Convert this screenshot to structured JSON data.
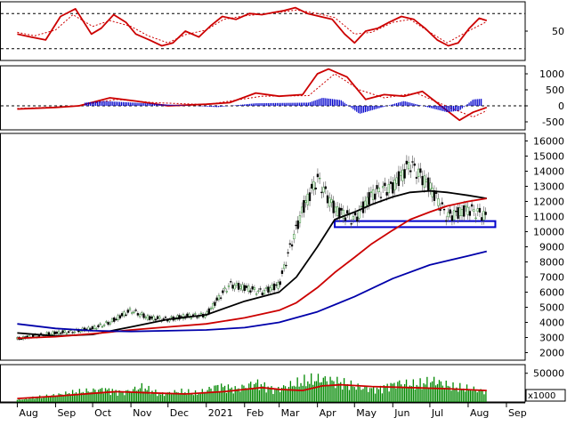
{
  "chart_data": [
    {
      "panel": "rsi",
      "type": "line",
      "y_ticks": [
        "50"
      ],
      "y_range": [
        0,
        100
      ],
      "reference_levels": [
        80,
        20
      ],
      "series": [
        {
          "color": "#cc0000",
          "style": "solid",
          "x": [
            "2020-08-01",
            "2020-08-12",
            "2020-08-24",
            "2020-09-05",
            "2020-09-17",
            "2020-09-30",
            "2020-10-08",
            "2020-10-18",
            "2020-10-28",
            "2020-11-05",
            "2020-11-16",
            "2020-11-26",
            "2020-12-05",
            "2020-12-15",
            "2020-12-26",
            "2021-01-05",
            "2021-01-14",
            "2021-01-25",
            "2021-02-05",
            "2021-02-15",
            "2021-02-25",
            "2021-03-05",
            "2021-03-14",
            "2021-03-24",
            "2021-04-03",
            "2021-04-13",
            "2021-04-23",
            "2021-05-01",
            "2021-05-10",
            "2021-05-20",
            "2021-05-29",
            "2021-06-08",
            "2021-06-18",
            "2021-06-27",
            "2021-07-07",
            "2021-07-16",
            "2021-07-24",
            "2021-08-02",
            "2021-08-10",
            "2021-08-16"
          ],
          "values": [
            45,
            40,
            35,
            75,
            88,
            45,
            55,
            78,
            65,
            45,
            35,
            25,
            30,
            50,
            40,
            60,
            75,
            70,
            80,
            78,
            82,
            85,
            90,
            80,
            75,
            70,
            45,
            30,
            50,
            55,
            65,
            75,
            70,
            55,
            35,
            25,
            30,
            55,
            72,
            68
          ]
        },
        {
          "color": "#cc0000",
          "style": "dotted",
          "x": [
            "2020-08-01",
            "2020-08-15",
            "2020-09-01",
            "2020-09-15",
            "2020-10-01",
            "2020-10-15",
            "2020-11-01",
            "2020-11-15",
            "2020-12-01",
            "2020-12-15",
            "2021-01-01",
            "2021-01-15",
            "2021-02-01",
            "2021-02-15",
            "2021-03-01",
            "2021-03-15",
            "2021-04-01",
            "2021-04-15",
            "2021-05-01",
            "2021-05-15",
            "2021-06-01",
            "2021-06-15",
            "2021-07-01",
            "2021-07-15",
            "2021-08-01",
            "2021-08-16"
          ],
          "values": [
            48,
            42,
            52,
            78,
            58,
            68,
            58,
            42,
            30,
            44,
            52,
            70,
            76,
            79,
            82,
            86,
            80,
            73,
            45,
            48,
            65,
            70,
            48,
            30,
            50,
            66
          ]
        }
      ]
    },
    {
      "panel": "macd",
      "type": "line",
      "y_ticks": [
        "1000",
        "500",
        "0",
        "-500"
      ],
      "y_range": [
        -750,
        1250
      ],
      "reference_levels": [
        0
      ],
      "series": [
        {
          "color": "#cc0000",
          "style": "solid",
          "x": [
            "2020-08-01",
            "2020-09-01",
            "2020-09-20",
            "2020-10-15",
            "2020-11-05",
            "2020-12-01",
            "2021-01-01",
            "2021-01-20",
            "2021-02-10",
            "2021-03-01",
            "2021-03-20",
            "2021-04-01",
            "2021-04-10",
            "2021-04-25",
            "2021-05-10",
            "2021-05-25",
            "2021-06-10",
            "2021-06-25",
            "2021-07-10",
            "2021-07-25",
            "2021-08-05",
            "2021-08-16"
          ],
          "values": [
            -100,
            -50,
            0,
            250,
            150,
            0,
            50,
            100,
            400,
            300,
            350,
            1000,
            1150,
            900,
            200,
            350,
            300,
            450,
            0,
            -450,
            -200,
            -50
          ]
        },
        {
          "color": "#cc0000",
          "style": "dotted",
          "x": [
            "2020-08-01",
            "2020-09-15",
            "2020-10-20",
            "2020-11-20",
            "2021-01-01",
            "2021-02-15",
            "2021-03-25",
            "2021-04-15",
            "2021-05-05",
            "2021-05-25",
            "2021-06-20",
            "2021-07-20",
            "2021-08-05",
            "2021-08-16"
          ],
          "values": [
            -80,
            -20,
            200,
            100,
            40,
            300,
            320,
            1000,
            500,
            250,
            400,
            -100,
            -350,
            -150
          ]
        },
        {
          "color": "#0000cc",
          "style": "histogram",
          "x": [
            "2020-09-25",
            "2020-10-10",
            "2021-01-10",
            "2021-02-10",
            "2021-03-25",
            "2021-04-05",
            "2021-04-20",
            "2021-05-05",
            "2021-06-10",
            "2021-07-15",
            "2021-07-25",
            "2021-08-05",
            "2021-08-12"
          ],
          "values": [
            100,
            150,
            -40,
            80,
            100,
            250,
            180,
            -250,
            150,
            -200,
            -150,
            200,
            220
          ]
        }
      ]
    },
    {
      "panel": "price",
      "type": "line",
      "y_ticks": [
        "16000",
        "15000",
        "14000",
        "13000",
        "12000",
        "11000",
        "10000",
        "9000",
        "8000",
        "7000",
        "6000",
        "5000",
        "4000",
        "3000",
        "2000"
      ],
      "y_range": [
        1500,
        16500
      ],
      "support_box": {
        "x_start": "2021-04-15",
        "x_end": "2021-08-23",
        "y_low": 10300,
        "y_high": 10700
      },
      "series": [
        {
          "color": "#333333",
          "style": "candles",
          "x": [
            "2020-08-01",
            "2020-08-15",
            "2020-09-01",
            "2020-09-15",
            "2020-10-01",
            "2020-10-15",
            "2020-11-01",
            "2020-11-15",
            "2020-12-01",
            "2020-12-15",
            "2021-01-01",
            "2021-01-10",
            "2021-01-20",
            "2021-02-01",
            "2021-02-15",
            "2021-03-01",
            "2021-03-10",
            "2021-03-20",
            "2021-04-01",
            "2021-04-15",
            "2021-05-01",
            "2021-05-15",
            "2021-06-01",
            "2021-06-15",
            "2021-07-01",
            "2021-07-15",
            "2021-08-01",
            "2021-08-16"
          ],
          "values": [
            2900,
            3100,
            3300,
            3400,
            3600,
            4000,
            4800,
            4300,
            4200,
            4400,
            4500,
            5500,
            6500,
            6300,
            6000,
            6500,
            9000,
            11500,
            13500,
            11500,
            10800,
            12500,
            13000,
            14500,
            13000,
            11000,
            11500,
            11000
          ]
        },
        {
          "color": "#000000",
          "style": "solid",
          "x": [
            "2020-08-01",
            "2020-09-01",
            "2020-10-01",
            "2020-11-01",
            "2020-12-01",
            "2021-01-01",
            "2021-02-01",
            "2021-03-01",
            "2021-03-15",
            "2021-04-01",
            "2021-04-15",
            "2021-05-01",
            "2021-05-15",
            "2021-06-01",
            "2021-06-15",
            "2021-07-01",
            "2021-07-15",
            "2021-08-01",
            "2021-08-16"
          ],
          "values": [
            3300,
            3100,
            3200,
            3700,
            4200,
            4500,
            5400,
            6000,
            7000,
            9000,
            10800,
            11300,
            11800,
            12300,
            12600,
            12700,
            12600,
            12400,
            12200
          ]
        },
        {
          "color": "#cc0000",
          "style": "solid",
          "x": [
            "2020-08-01",
            "2020-09-01",
            "2020-10-01",
            "2020-11-01",
            "2020-12-01",
            "2021-01-01",
            "2021-02-01",
            "2021-03-01",
            "2021-03-15",
            "2021-04-01",
            "2021-04-15",
            "2021-05-01",
            "2021-05-15",
            "2021-06-01",
            "2021-06-15",
            "2021-07-01",
            "2021-07-15",
            "2021-08-01",
            "2021-08-16"
          ],
          "values": [
            2950,
            3050,
            3250,
            3500,
            3700,
            3900,
            4300,
            4800,
            5300,
            6300,
            7300,
            8300,
            9200,
            10100,
            10800,
            11300,
            11700,
            12000,
            12200
          ]
        },
        {
          "color": "#0000aa",
          "style": "solid",
          "x": [
            "2020-08-01",
            "2020-09-01",
            "2020-10-01",
            "2020-11-01",
            "2020-12-01",
            "2021-01-01",
            "2021-02-01",
            "2021-03-01",
            "2021-04-01",
            "2021-05-01",
            "2021-06-01",
            "2021-07-01",
            "2021-08-01",
            "2021-08-16"
          ],
          "values": [
            3900,
            3600,
            3450,
            3400,
            3450,
            3500,
            3650,
            4000,
            4700,
            5700,
            6900,
            7800,
            8400,
            8700
          ]
        }
      ]
    },
    {
      "panel": "volume",
      "type": "bar",
      "y_ticks": [
        "50000"
      ],
      "y_range": [
        0,
        65000
      ],
      "unit": "x1000",
      "series": [
        {
          "color": "#008800",
          "style": "bars",
          "x": [
            "2020-08-01",
            "2020-08-20",
            "2020-09-10",
            "2020-09-25",
            "2020-10-10",
            "2020-10-25",
            "2020-11-10",
            "2020-11-25",
            "2020-12-10",
            "2020-12-25",
            "2021-01-10",
            "2021-01-25",
            "2021-02-10",
            "2021-02-25",
            "2021-03-10",
            "2021-03-25",
            "2021-04-05",
            "2021-04-20",
            "2021-05-05",
            "2021-05-20",
            "2021-06-05",
            "2021-06-20",
            "2021-07-05",
            "2021-07-20",
            "2021-08-05",
            "2021-08-16"
          ],
          "values": [
            5000,
            12000,
            20000,
            25000,
            30000,
            22000,
            35000,
            18000,
            25000,
            20000,
            38000,
            30000,
            45000,
            28000,
            40000,
            50000,
            55000,
            45000,
            35000,
            30000,
            45000,
            40000,
            50000,
            35000,
            30000,
            25000
          ]
        },
        {
          "color": "#cc0000",
          "style": "solid",
          "x": [
            "2020-08-01",
            "2020-09-01",
            "2020-10-01",
            "2020-10-20",
            "2020-11-15",
            "2020-12-15",
            "2021-01-15",
            "2021-02-15",
            "2021-03-01",
            "2021-03-20",
            "2021-04-05",
            "2021-04-20",
            "2021-05-15",
            "2021-06-15",
            "2021-07-15",
            "2021-08-16"
          ],
          "values": [
            6000,
            10000,
            15000,
            18000,
            16000,
            14000,
            18000,
            25000,
            22000,
            20000,
            28000,
            30000,
            27000,
            25000,
            23000,
            20000
          ]
        }
      ]
    }
  ],
  "x_axis": {
    "range": [
      "2020-07-18",
      "2021-09-14"
    ],
    "labels": [
      {
        "text": "Aug",
        "date": "2020-08-01"
      },
      {
        "text": "Sep",
        "date": "2020-09-01"
      },
      {
        "text": "Oct",
        "date": "2020-10-01"
      },
      {
        "text": "Nov",
        "date": "2020-11-01"
      },
      {
        "text": "Dec",
        "date": "2020-12-01"
      },
      {
        "text": "2021",
        "date": "2021-01-01"
      },
      {
        "text": "Feb",
        "date": "2021-02-01"
      },
      {
        "text": "Mar",
        "date": "2021-03-01"
      },
      {
        "text": "Apr",
        "date": "2021-04-01"
      },
      {
        "text": "May",
        "date": "2021-05-01"
      },
      {
        "text": "Jun",
        "date": "2021-06-01"
      },
      {
        "text": "Jul",
        "date": "2021-07-01"
      },
      {
        "text": "Aug",
        "date": "2021-08-01"
      },
      {
        "text": "Sep",
        "date": "2021-09-01"
      }
    ]
  }
}
